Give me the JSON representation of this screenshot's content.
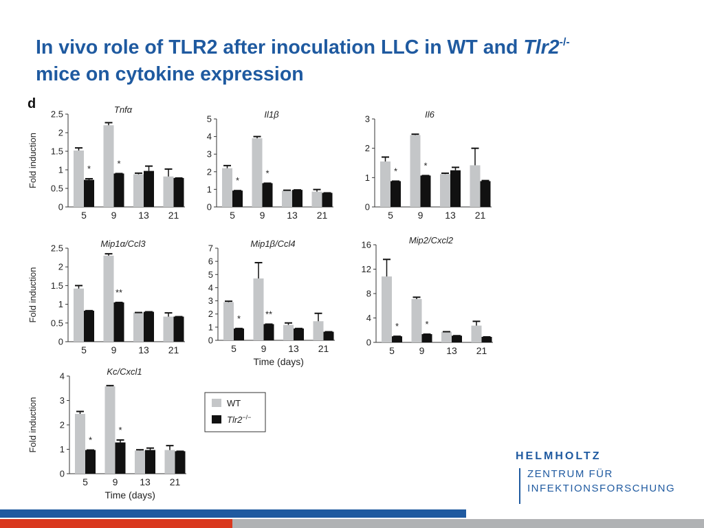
{
  "slide": {
    "title_main": "In vivo role of TLR2 after inoculation LLC in WT and ",
    "title_gene": "Tlr2",
    "title_sup": "-/-",
    "title_line2": "mice on cytokine expression",
    "panel_letter": "d"
  },
  "legend": {
    "wt": "WT",
    "ko": "Tlr2",
    "ko_sup": "−/−"
  },
  "colors": {
    "wt": "#c4c6c8",
    "ko": "#111111",
    "title": "#1f5aa0",
    "logo": "#1f5aa0",
    "footer_blue": "#1f5aa0",
    "footer_red": "#d9381e",
    "footer_gray": "#b0b2b4"
  },
  "logo": {
    "line1": "HELMHOLTZ",
    "line2": "ZENTRUM FÜR",
    "line3": "INFEKTIONSFORSCHUNG"
  },
  "chart_data": [
    {
      "type": "bar",
      "title": "Tnfα",
      "ylabel": "Fold induction",
      "xlabel": "",
      "categories": [
        "5",
        "9",
        "13",
        "21"
      ],
      "ylim": [
        0,
        2.5
      ],
      "yticks": [
        "0",
        "0.5",
        "1",
        "1.5",
        "2",
        "2.5"
      ],
      "series": [
        {
          "name": "WT",
          "values": [
            1.52,
            2.2,
            0.88,
            0.82
          ],
          "errors": [
            0.07,
            0.07,
            0.03,
            0.2
          ]
        },
        {
          "name": "Tlr2−/−",
          "values": [
            0.73,
            0.9,
            0.97,
            0.78
          ],
          "errors": [
            0.03,
            0.0,
            0.13,
            0.0
          ]
        }
      ],
      "annotations": [
        {
          "category": "5",
          "text": "*"
        },
        {
          "category": "9",
          "text": "*"
        }
      ]
    },
    {
      "type": "bar",
      "title": "Il1β",
      "ylabel": "",
      "xlabel": "",
      "categories": [
        "5",
        "9",
        "13",
        "21"
      ],
      "ylim": [
        0,
        5
      ],
      "yticks": [
        "0",
        "1",
        "2",
        "3",
        "4",
        "5"
      ],
      "series": [
        {
          "name": "WT",
          "values": [
            2.2,
            3.9,
            0.93,
            0.87
          ],
          "errors": [
            0.15,
            0.1,
            0.02,
            0.12
          ]
        },
        {
          "name": "Tlr2−/−",
          "values": [
            0.93,
            1.35,
            0.97,
            0.8
          ],
          "errors": [
            0.0,
            0.0,
            0.0,
            0.0
          ]
        }
      ],
      "annotations": [
        {
          "category": "5",
          "text": "*"
        },
        {
          "category": "9",
          "text": "*"
        }
      ]
    },
    {
      "type": "bar",
      "title": "Il6",
      "ylabel": "",
      "xlabel": "",
      "categories": [
        "5",
        "9",
        "13",
        "21"
      ],
      "ylim": [
        0,
        3
      ],
      "yticks": [
        "0",
        "1",
        "2",
        "3"
      ],
      "series": [
        {
          "name": "WT",
          "values": [
            1.55,
            2.45,
            1.12,
            1.42
          ],
          "errors": [
            0.15,
            0.03,
            0.03,
            0.58
          ]
        },
        {
          "name": "Tlr2−/−",
          "values": [
            0.88,
            1.07,
            1.25,
            0.88
          ],
          "errors": [
            0.0,
            0.0,
            0.1,
            0.02
          ]
        }
      ],
      "annotations": [
        {
          "category": "5",
          "text": "*"
        },
        {
          "category": "9",
          "text": "*"
        }
      ]
    },
    {
      "type": "bar",
      "title": "Mip1α/Ccl3",
      "ylabel": "Fold induction",
      "xlabel": "",
      "categories": [
        "5",
        "9",
        "13",
        "21"
      ],
      "ylim": [
        0,
        2.5
      ],
      "yticks": [
        "0",
        "0.5",
        "1",
        "1.5",
        "2",
        "2.5"
      ],
      "series": [
        {
          "name": "WT",
          "values": [
            1.42,
            2.3,
            0.78,
            0.67
          ],
          "errors": [
            0.08,
            0.05,
            0.0,
            0.1
          ]
        },
        {
          "name": "Tlr2−/−",
          "values": [
            0.83,
            1.05,
            0.8,
            0.67
          ],
          "errors": [
            0.0,
            0.0,
            0.0,
            0.0
          ]
        }
      ],
      "annotations": [
        {
          "category": "9",
          "text": "**"
        }
      ]
    },
    {
      "type": "bar",
      "title": "Mip1β/Ccl4",
      "ylabel": "",
      "xlabel": "Time (days)",
      "categories": [
        "5",
        "9",
        "13",
        "21"
      ],
      "ylim": [
        0,
        7
      ],
      "yticks": [
        "0",
        "1",
        "2",
        "3",
        "4",
        "5",
        "6",
        "7"
      ],
      "series": [
        {
          "name": "WT",
          "values": [
            2.9,
            4.7,
            1.17,
            1.45
          ],
          "errors": [
            0.07,
            1.2,
            0.15,
            0.6
          ]
        },
        {
          "name": "Tlr2−/−",
          "values": [
            0.9,
            1.23,
            0.9,
            0.65
          ],
          "errors": [
            0.0,
            0.0,
            0.0,
            0.0
          ]
        }
      ],
      "annotations": [
        {
          "category": "5",
          "text": "*"
        },
        {
          "category": "9",
          "text": "**"
        }
      ]
    },
    {
      "type": "bar",
      "title": "Mip2/Cxcl2",
      "ylabel": "",
      "xlabel": "",
      "categories": [
        "5",
        "9",
        "13",
        "21"
      ],
      "ylim": [
        0,
        16
      ],
      "yticks": [
        "0",
        "4",
        "8",
        "12",
        "16"
      ],
      "series": [
        {
          "name": "WT",
          "values": [
            10.8,
            7.1,
            1.75,
            2.75
          ],
          "errors": [
            2.8,
            0.3,
            0.0,
            0.7
          ]
        },
        {
          "name": "Tlr2−/−",
          "values": [
            1.0,
            1.35,
            1.1,
            0.9
          ],
          "errors": [
            0.0,
            0.0,
            0.0,
            0.0
          ]
        }
      ],
      "annotations": [
        {
          "category": "5",
          "text": "*"
        },
        {
          "category": "9",
          "text": "*"
        }
      ]
    },
    {
      "type": "bar",
      "title": "Kc/Cxcl1",
      "ylabel": "Fold induction",
      "xlabel": "Time (days)",
      "categories": [
        "5",
        "9",
        "13",
        "21"
      ],
      "ylim": [
        0,
        4
      ],
      "yticks": [
        "0",
        "1",
        "2",
        "3",
        "4"
      ],
      "series": [
        {
          "name": "WT",
          "values": [
            2.45,
            3.58,
            0.95,
            0.97
          ],
          "errors": [
            0.1,
            0.03,
            0.03,
            0.18
          ]
        },
        {
          "name": "Tlr2−/−",
          "values": [
            0.97,
            1.28,
            0.97,
            0.92
          ],
          "errors": [
            0.0,
            0.1,
            0.08,
            0.0
          ]
        }
      ],
      "annotations": [
        {
          "category": "5",
          "text": "*"
        },
        {
          "category": "9",
          "text": "*"
        }
      ]
    }
  ]
}
